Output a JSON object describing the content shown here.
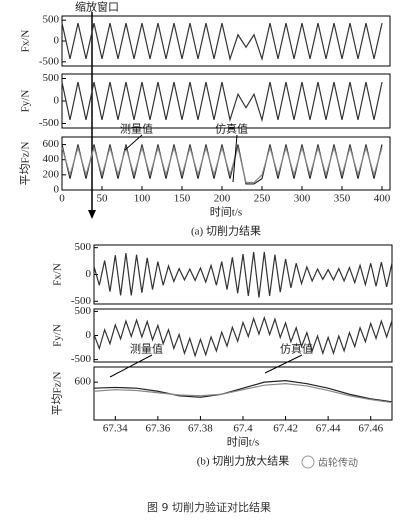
{
  "chart_data": [
    {
      "type": "line",
      "ylabel": "Fx/N",
      "annotation": "缩放窗口",
      "xlim": [
        0,
        410
      ],
      "ylim": [
        -600,
        600
      ],
      "yticks": [
        500,
        0,
        -500
      ],
      "x": [
        0,
        10,
        20,
        30,
        40,
        50,
        60,
        70,
        80,
        90,
        100,
        110,
        120,
        130,
        140,
        150,
        160,
        170,
        180,
        190,
        200,
        210,
        220,
        230,
        240,
        250,
        260,
        270,
        280,
        290,
        300,
        310,
        320,
        330,
        340,
        350,
        360,
        370,
        380,
        390,
        400
      ],
      "series": [
        {
          "color": "#333333",
          "values": [
            430,
            -430,
            430,
            -430,
            430,
            -430,
            430,
            -430,
            430,
            -430,
            430,
            -430,
            430,
            -430,
            430,
            -430,
            430,
            -430,
            430,
            -430,
            430,
            -430,
            150,
            -150,
            150,
            -430,
            430,
            -430,
            430,
            -430,
            430,
            -430,
            430,
            -430,
            430,
            -430,
            430,
            -430,
            430,
            -430,
            430
          ]
        }
      ]
    },
    {
      "type": "line",
      "ylabel": "Fy/N",
      "xlim": [
        0,
        410
      ],
      "ylim": [
        -600,
        600
      ],
      "yticks": [
        500,
        0,
        -500
      ],
      "x": [
        0,
        10,
        20,
        30,
        40,
        50,
        60,
        70,
        80,
        90,
        100,
        110,
        120,
        130,
        140,
        150,
        160,
        170,
        180,
        190,
        200,
        210,
        220,
        230,
        240,
        250,
        260,
        270,
        280,
        290,
        300,
        310,
        320,
        330,
        340,
        350,
        360,
        370,
        380,
        390,
        400
      ],
      "series": [
        {
          "color": "#333333",
          "values": [
            420,
            -420,
            420,
            -420,
            420,
            -420,
            420,
            -420,
            420,
            -420,
            420,
            -420,
            420,
            -420,
            420,
            -420,
            420,
            -420,
            420,
            -420,
            420,
            -420,
            150,
            -150,
            150,
            -420,
            420,
            -420,
            420,
            -420,
            420,
            -420,
            420,
            -420,
            420,
            -420,
            420,
            -420,
            420,
            -420,
            420
          ]
        }
      ]
    },
    {
      "type": "line",
      "ylabel": "平均Fz/N",
      "xlabel": "时间t/s",
      "caption": "(a) 切削力结果",
      "xlim": [
        0,
        410
      ],
      "ylim": [
        0,
        700
      ],
      "yticks": [
        0,
        200,
        400,
        600
      ],
      "xticks": [
        0,
        50,
        100,
        150,
        200,
        250,
        300,
        350,
        400
      ],
      "x": [
        0,
        10,
        20,
        30,
        40,
        50,
        60,
        70,
        80,
        90,
        100,
        110,
        120,
        130,
        140,
        150,
        160,
        170,
        180,
        190,
        200,
        210,
        220,
        230,
        240,
        250,
        260,
        270,
        280,
        290,
        300,
        310,
        320,
        330,
        340,
        350,
        360,
        370,
        380,
        390,
        400
      ],
      "series": [
        {
          "name": "测量值",
          "color": "#222222",
          "values": [
            600,
            150,
            600,
            150,
            600,
            150,
            600,
            150,
            600,
            150,
            600,
            150,
            600,
            150,
            600,
            150,
            600,
            150,
            600,
            150,
            600,
            150,
            600,
            80,
            80,
            150,
            600,
            150,
            600,
            150,
            600,
            150,
            600,
            150,
            600,
            150,
            600,
            150,
            600,
            150,
            600
          ]
        },
        {
          "name": "仿真值",
          "color": "#888888",
          "values": [
            560,
            200,
            560,
            200,
            560,
            200,
            560,
            200,
            560,
            200,
            560,
            200,
            560,
            200,
            560,
            200,
            560,
            200,
            560,
            200,
            560,
            200,
            560,
            100,
            100,
            200,
            560,
            200,
            560,
            200,
            560,
            200,
            560,
            200,
            560,
            200,
            560,
            200,
            560,
            200,
            560
          ]
        }
      ]
    },
    {
      "type": "line",
      "ylabel": "Fx/N",
      "xlim": [
        67.33,
        67.47
      ],
      "ylim": [
        -550,
        550
      ],
      "yticks": [
        500,
        0,
        -500
      ],
      "x": [
        67.33,
        67.3325,
        67.335,
        67.3375,
        67.34,
        67.3425,
        67.345,
        67.3475,
        67.35,
        67.3525,
        67.355,
        67.3575,
        67.36,
        67.3625,
        67.365,
        67.3675,
        67.37,
        67.3725,
        67.375,
        67.3775,
        67.38,
        67.3825,
        67.385,
        67.3875,
        67.39,
        67.3925,
        67.395,
        67.3975,
        67.4,
        67.4025,
        67.405,
        67.4075,
        67.41,
        67.4125,
        67.415,
        67.4175,
        67.42,
        67.4225,
        67.425,
        67.4275,
        67.43,
        67.4325,
        67.435,
        67.4375,
        67.44,
        67.4425,
        67.445,
        67.4475,
        67.45,
        67.4525,
        67.455,
        67.4575,
        67.46,
        67.4625,
        67.465,
        67.4675,
        67.47
      ],
      "series": [
        {
          "color": "#333333",
          "values": [
            150,
            -200,
            260,
            -320,
            360,
            -390,
            400,
            -390,
            370,
            -340,
            310,
            -280,
            240,
            -200,
            160,
            -130,
            110,
            -100,
            100,
            -110,
            120,
            -140,
            170,
            -200,
            240,
            -280,
            320,
            -350,
            380,
            -400,
            420,
            -430,
            420,
            -400,
            370,
            -330,
            290,
            -250,
            210,
            -170,
            140,
            -120,
            100,
            -90,
            90,
            -100,
            110,
            -120,
            130,
            -150,
            170,
            -190,
            210,
            -220,
            230,
            -230,
            220
          ]
        }
      ]
    },
    {
      "type": "line",
      "ylabel": "Fy/N",
      "xlim": [
        67.33,
        67.47
      ],
      "ylim": [
        -550,
        550
      ],
      "yticks": [
        500,
        0,
        -500
      ],
      "x": [
        67.33,
        67.3325,
        67.335,
        67.3375,
        67.34,
        67.3425,
        67.345,
        67.3475,
        67.35,
        67.3525,
        67.355,
        67.3575,
        67.36,
        67.3625,
        67.365,
        67.3675,
        67.37,
        67.3725,
        67.375,
        67.3775,
        67.38,
        67.3825,
        67.385,
        67.3875,
        67.39,
        67.3925,
        67.395,
        67.3975,
        67.4,
        67.4025,
        67.405,
        67.4075,
        67.41,
        67.4125,
        67.415,
        67.4175,
        67.42,
        67.4225,
        67.425,
        67.4275,
        67.43,
        67.4325,
        67.435,
        67.4375,
        67.44,
        67.4425,
        67.445,
        67.4475,
        67.45,
        67.4525,
        67.455,
        67.4575,
        67.46,
        67.4625,
        67.465,
        67.4675,
        67.47
      ],
      "series": [
        {
          "color": "#333333",
          "values": [
            20,
            -270,
            120,
            -170,
            220,
            -70,
            300,
            -20,
            320,
            -30,
            290,
            -90,
            210,
            -170,
            120,
            -270,
            20,
            -370,
            -60,
            -420,
            -80,
            -400,
            -30,
            -320,
            70,
            -220,
            170,
            -120,
            270,
            -20,
            350,
            30,
            370,
            20,
            340,
            -40,
            260,
            -130,
            160,
            -230,
            60,
            -320,
            -10,
            -370,
            -40,
            -370,
            -10,
            -320,
            60,
            -230,
            160,
            -130,
            250,
            -60,
            300,
            -30,
            310
          ]
        }
      ]
    },
    {
      "type": "line",
      "ylabel": "平均Fz/N",
      "xlabel": "时间t/s",
      "caption": "(b) 切削力放大结果",
      "xlim": [
        67.33,
        67.47
      ],
      "ylim": [
        350,
        700
      ],
      "yticks": [
        600
      ],
      "xticks": [
        67.34,
        67.36,
        67.38,
        67.4,
        67.42,
        67.44,
        67.46
      ],
      "x": [
        67.33,
        67.34,
        67.35,
        67.36,
        67.37,
        67.38,
        67.39,
        67.4,
        67.41,
        67.42,
        67.43,
        67.44,
        67.45,
        67.46,
        67.47
      ],
      "series": [
        {
          "name": "测量值",
          "color": "#222222",
          "values": [
            560,
            565,
            560,
            540,
            510,
            500,
            520,
            560,
            600,
            610,
            590,
            560,
            520,
            490,
            470
          ]
        },
        {
          "name": "仿真值",
          "color": "#888888",
          "values": [
            540,
            550,
            545,
            530,
            515,
            510,
            520,
            550,
            580,
            590,
            575,
            545,
            510,
            485,
            465
          ]
        }
      ]
    }
  ],
  "figure_caption": "图 9 切削力验证对比结果",
  "watermark": "齿轮传动"
}
